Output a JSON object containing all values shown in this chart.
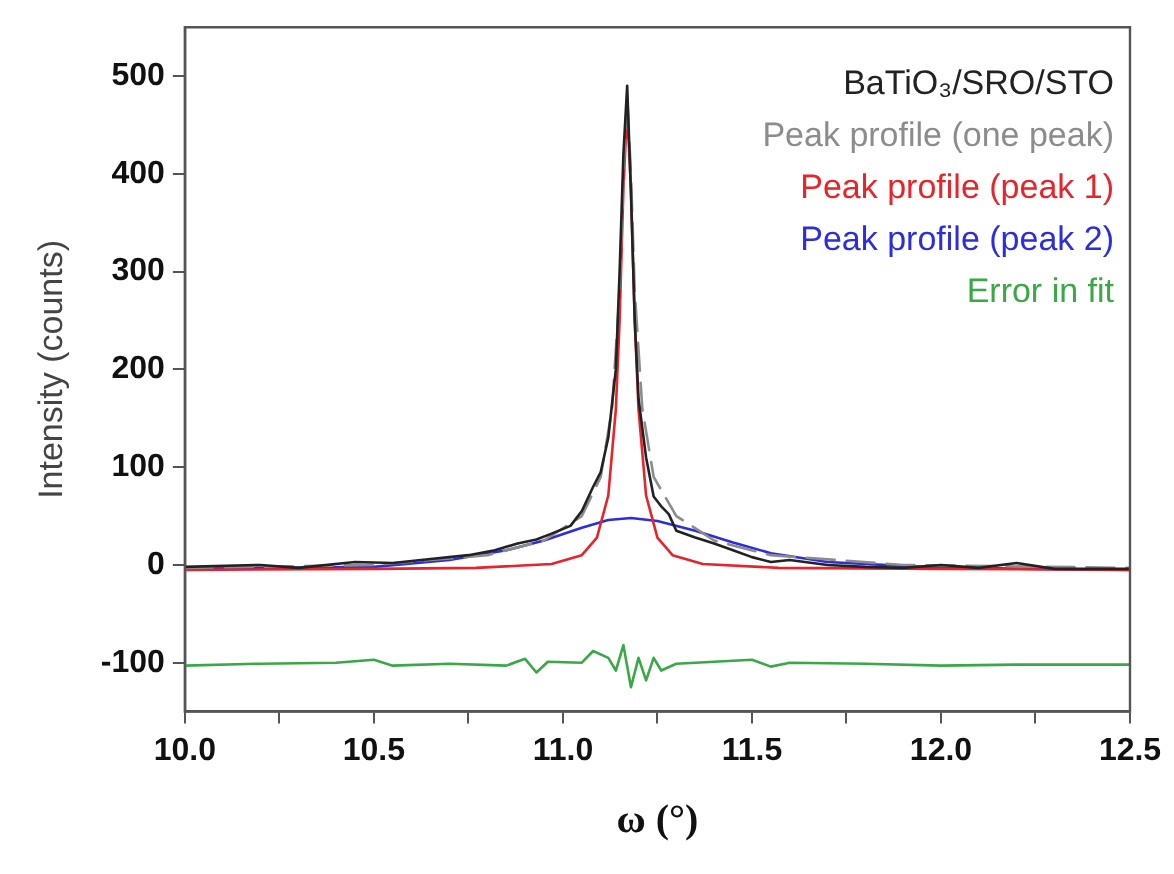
{
  "chart_data": {
    "type": "line",
    "xlabel": "ω (°)",
    "ylabel": "Intensity (counts)",
    "xlim": [
      10,
      12.5
    ],
    "ylim": [
      -150,
      550
    ],
    "xticks": [
      {
        "value": 10,
        "label": "10.0"
      },
      {
        "value": 10.25,
        "label": null
      },
      {
        "value": 10.5,
        "label": "10.5"
      },
      {
        "value": 10.75,
        "label": null
      },
      {
        "value": 11,
        "label": "11.0"
      },
      {
        "value": 11.25,
        "label": null
      },
      {
        "value": 11.5,
        "label": "11.5"
      },
      {
        "value": 11.75,
        "label": null
      },
      {
        "value": 12,
        "label": "12.0"
      },
      {
        "value": 12.25,
        "label": null
      },
      {
        "value": 12.5,
        "label": "12.5"
      }
    ],
    "yticks": [
      -100,
      0,
      100,
      200,
      300,
      400,
      500
    ],
    "grid": false,
    "legend": "top right",
    "marker": "none",
    "series": [
      {
        "name": "BaTiO₃/SRO/STO",
        "color": "#222222",
        "x": [
          10.0,
          10.2,
          10.3,
          10.45,
          10.55,
          10.65,
          10.75,
          10.82,
          10.88,
          10.93,
          10.97,
          11.02,
          11.05,
          11.08,
          11.1,
          11.12,
          11.14,
          11.15,
          11.16,
          11.17,
          11.18,
          11.19,
          11.2,
          11.22,
          11.24,
          11.26,
          11.28,
          11.3,
          11.35,
          11.4,
          11.45,
          11.5,
          11.55,
          11.6,
          11.7,
          11.8,
          11.9,
          12.0,
          12.1,
          12.2,
          12.3,
          12.5
        ],
        "values": [
          -2,
          0,
          -3,
          3,
          2,
          6,
          10,
          15,
          22,
          26,
          32,
          40,
          55,
          80,
          95,
          130,
          200,
          300,
          420,
          490,
          380,
          250,
          170,
          110,
          70,
          60,
          52,
          35,
          28,
          22,
          15,
          8,
          3,
          5,
          0,
          -2,
          -3,
          0,
          -3,
          2,
          -4,
          -4
        ]
      },
      {
        "name": "Peak profile (one peak)",
        "color": "#8c8c8c",
        "line_style": "dashed",
        "x": [
          10.0,
          10.5,
          10.8,
          10.95,
          11.05,
          11.1,
          11.13,
          11.15,
          11.16,
          11.17,
          11.18,
          11.19,
          11.21,
          11.24,
          11.3,
          11.4,
          11.55,
          11.9,
          12.5
        ],
        "values": [
          -3,
          0,
          10,
          25,
          50,
          90,
          160,
          280,
          400,
          480,
          400,
          280,
          160,
          90,
          50,
          25,
          10,
          0,
          -3
        ]
      },
      {
        "name": "Peak profile (peak 1)",
        "color": "#e8232a",
        "x": [
          10.0,
          10.5,
          10.77,
          10.97,
          11.05,
          11.09,
          11.12,
          11.14,
          11.15,
          11.16,
          11.17,
          11.18,
          11.19,
          11.2,
          11.22,
          11.25,
          11.29,
          11.37,
          11.57,
          12.0,
          12.5
        ],
        "values": [
          -5,
          -4,
          -3,
          1,
          10,
          28,
          71,
          159,
          250,
          385,
          465,
          385,
          250,
          159,
          71,
          28,
          10,
          1,
          -3,
          -4,
          -5
        ]
      },
      {
        "name": "Peak profile (peak 2)",
        "color": "#2c2ce0",
        "x": [
          10.0,
          10.5,
          10.7,
          10.85,
          10.95,
          11.05,
          11.12,
          11.18,
          11.25,
          11.35,
          11.45,
          11.55,
          11.7,
          12.0,
          12.5
        ],
        "values": [
          -4,
          -2,
          5,
          15,
          25,
          38,
          46,
          48,
          45,
          35,
          23,
          12,
          3,
          -3,
          -5
        ]
      },
      {
        "name": "Error in fit",
        "color": "#3aa845",
        "x": [
          10.0,
          10.2,
          10.4,
          10.5,
          10.55,
          10.7,
          10.85,
          10.9,
          10.93,
          10.96,
          11.05,
          11.08,
          11.12,
          11.14,
          11.16,
          11.18,
          11.2,
          11.22,
          11.24,
          11.26,
          11.3,
          11.4,
          11.5,
          11.55,
          11.6,
          11.8,
          12.0,
          12.2,
          12.5
        ],
        "values": [
          -103,
          -101,
          -100,
          -97,
          -103,
          -101,
          -103,
          -96,
          -110,
          -99,
          -100,
          -88,
          -95,
          -108,
          -82,
          -125,
          -95,
          -118,
          -95,
          -108,
          -101,
          -99,
          -97,
          -104,
          -100,
          -101,
          -103,
          -102,
          -102
        ]
      }
    ]
  }
}
